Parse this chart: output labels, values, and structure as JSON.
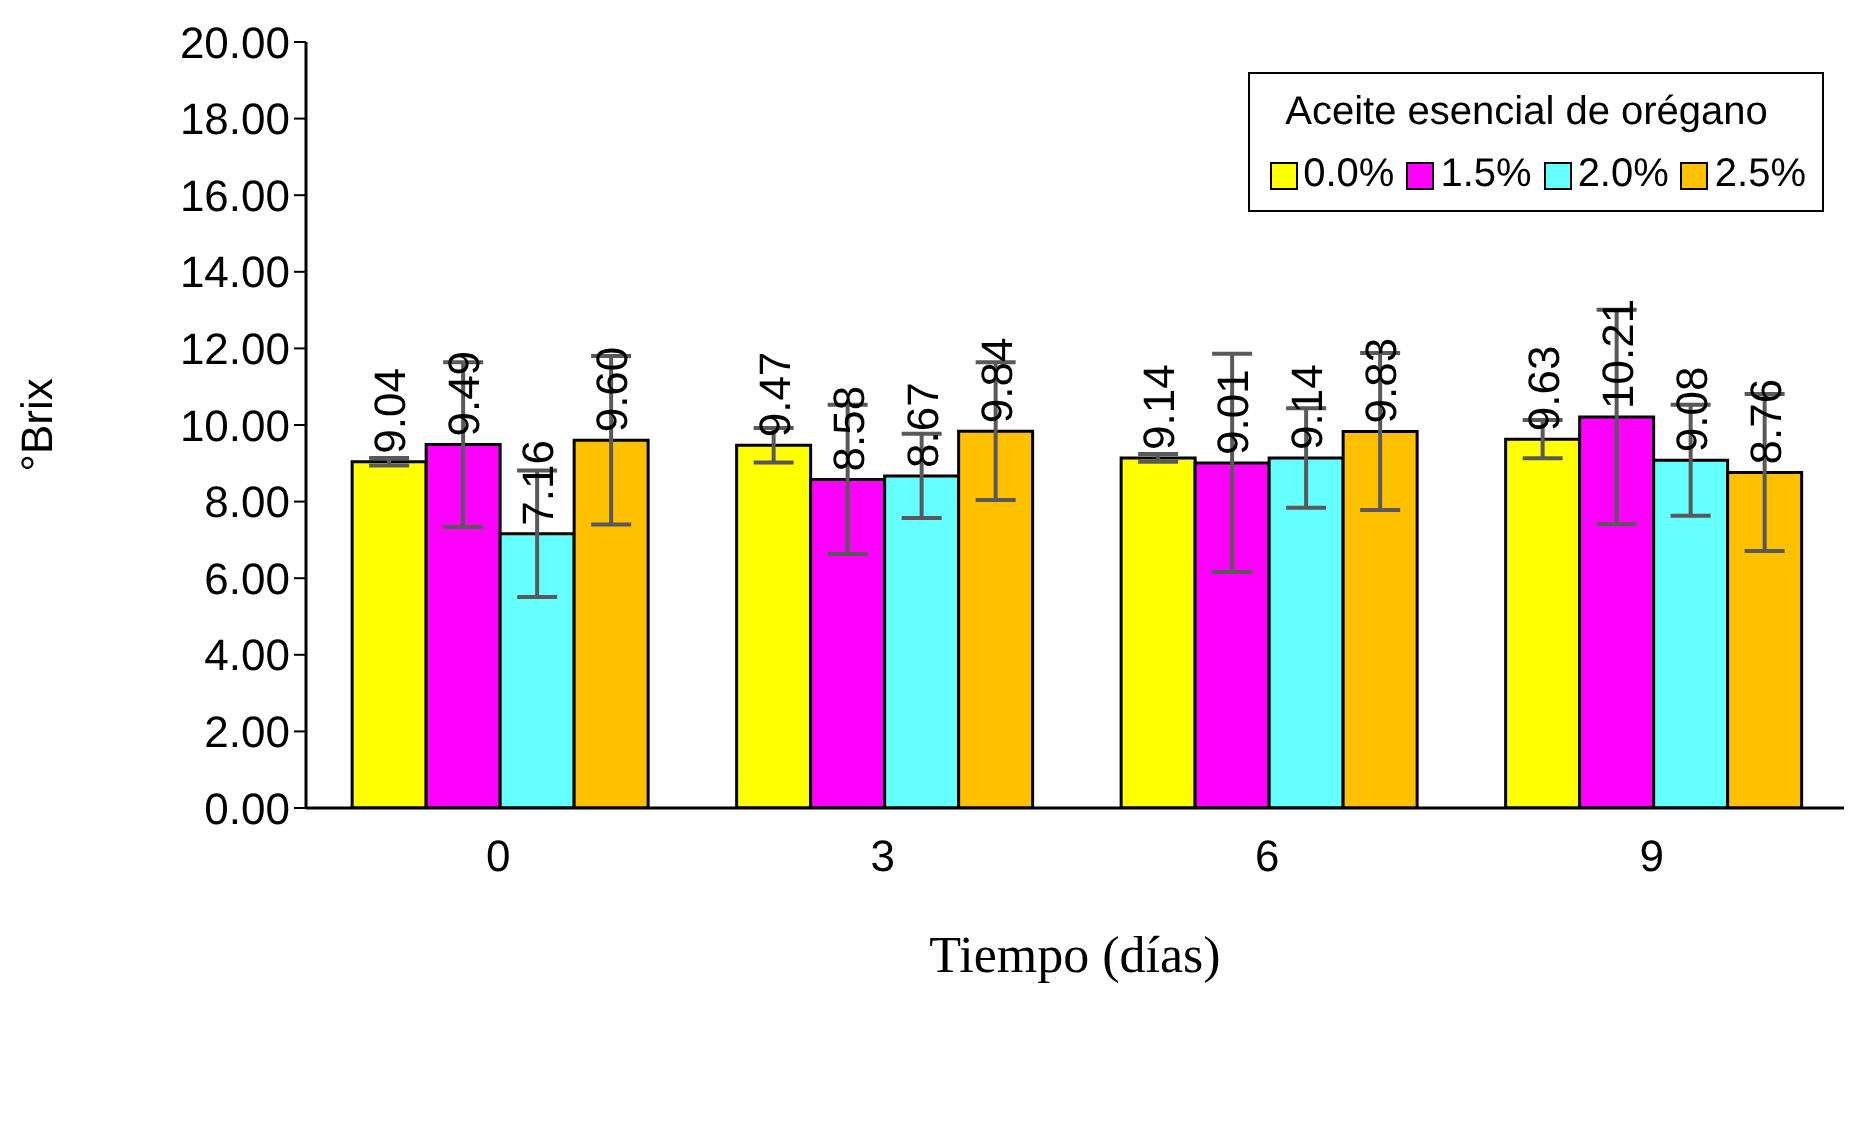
{
  "chart_data": {
    "type": "bar",
    "xlabel": "Tiempo (días)",
    "ylabel": "°Brix",
    "legend_title": "Aceite esencial de orégano",
    "categories": [
      "0",
      "3",
      "6",
      "9"
    ],
    "series": [
      {
        "name": "0.0%",
        "color": "#ffff00",
        "values": [
          9.04,
          9.47,
          9.14,
          9.63
        ],
        "errors": [
          0.1,
          0.45,
          0.1,
          0.5
        ],
        "value_labels": [
          "9.04",
          "9.47",
          "9.14",
          "9.63"
        ]
      },
      {
        "name": "1.5%",
        "color": "#ff00ff",
        "values": [
          9.49,
          8.58,
          9.01,
          10.21
        ],
        "errors": [
          2.15,
          1.95,
          2.85,
          2.8
        ],
        "value_labels": [
          "9.49",
          "8.58",
          "9.01",
          "10.21"
        ]
      },
      {
        "name": "2.0%",
        "color": "#66ffff",
        "values": [
          7.16,
          8.67,
          9.14,
          9.08
        ],
        "errors": [
          1.65,
          1.1,
          1.3,
          1.45
        ],
        "value_labels": [
          "7.16",
          "8.67",
          "9.14",
          "9.08"
        ]
      },
      {
        "name": "2.5%",
        "color": "#ffc000",
        "values": [
          9.6,
          9.84,
          9.83,
          8.76
        ],
        "errors": [
          2.2,
          1.8,
          2.05,
          2.05
        ],
        "value_labels": [
          "9.60",
          "9.84",
          "9.83",
          "8.76"
        ]
      }
    ],
    "ylim": [
      0,
      20
    ],
    "yticks": [
      {
        "value": 0,
        "label": "0.00"
      },
      {
        "value": 2,
        "label": "2.00"
      },
      {
        "value": 4,
        "label": "4.00"
      },
      {
        "value": 6,
        "label": "6.00"
      },
      {
        "value": 8,
        "label": "8.00"
      },
      {
        "value": 10,
        "label": "10.00"
      },
      {
        "value": 12,
        "label": "12.00"
      },
      {
        "value": 14,
        "label": "14.00"
      },
      {
        "value": 16,
        "label": "16.00"
      },
      {
        "value": 18,
        "label": "18.00"
      },
      {
        "value": 20,
        "label": "20.00"
      }
    ],
    "grid": false,
    "legend": "top right"
  }
}
